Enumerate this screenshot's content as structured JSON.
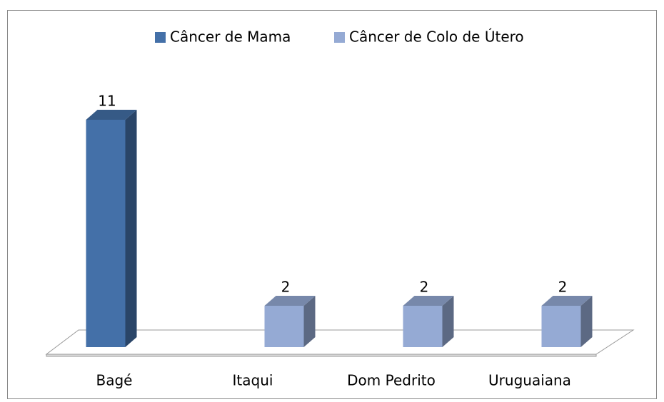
{
  "chart_data": {
    "type": "bar3d",
    "categories": [
      "Bagé",
      "Itaqui",
      "Dom Pedrito",
      "Uruguaiana"
    ],
    "series": [
      {
        "name": "Câncer de Mama",
        "color": "#4470a8",
        "values": [
          11,
          null,
          null,
          null
        ]
      },
      {
        "name": "Câncer de Colo de Útero",
        "color": "#95aad4",
        "values": [
          null,
          2,
          2,
          2
        ]
      }
    ],
    "legend": "top"
  }
}
